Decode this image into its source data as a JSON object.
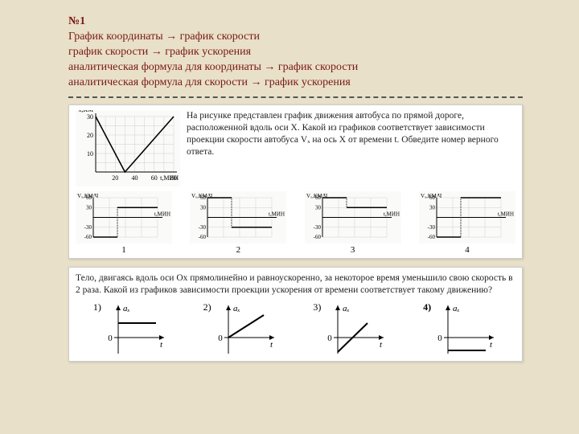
{
  "header": {
    "num": "№1",
    "line1": "График координаты → график скорости",
    "line2": "график скорости → график ускорения",
    "line3": "аналитическая формула для координаты → график скорости",
    "line4": "аналитическая формула для скорости → график ускорения"
  },
  "problem1": {
    "text": "На рисунке представлен график движения автобуса по прямой дороге, расположенной вдоль оси X. Какой из графиков соответствует зависимости проекции скорости автобуса Vₓ на ось X от времени t. Обведите номер верного ответа.",
    "main_chart": {
      "ylabel": "x,КМ",
      "xlabel": "t,МИН",
      "xticks": [
        20,
        40,
        60,
        80
      ],
      "yticks": [
        10,
        20,
        30
      ],
      "pts": [
        [
          0,
          30
        ],
        [
          30,
          0
        ],
        [
          80,
          30
        ]
      ],
      "bg": "#fafaf8",
      "grid": "#cfcfcf",
      "axis": "#000",
      "line": "#000",
      "axis_fontsize": 8
    },
    "options": [
      {
        "n": "1",
        "ylab": "Vₓ,КМ/Ч",
        "xlab": "t,МИН",
        "yticks": [
          -60,
          -30,
          30,
          60
        ],
        "seg": [
          [
            0,
            -60,
            30,
            -60
          ],
          [
            30,
            30,
            80,
            30
          ]
        ]
      },
      {
        "n": "2",
        "ylab": "Vₓ,КМ/Ч",
        "xlab": "t,МИН",
        "yticks": [
          -60,
          -30,
          30,
          60
        ],
        "seg": [
          [
            0,
            60,
            30,
            60
          ],
          [
            30,
            -30,
            80,
            -30
          ]
        ]
      },
      {
        "n": "3",
        "ylab": "Vₓ,КМ/Ч",
        "xlab": "t,МИН",
        "yticks": [
          -60,
          -30,
          30,
          60
        ],
        "seg": [
          [
            0,
            60,
            30,
            60
          ],
          [
            30,
            30,
            80,
            30
          ]
        ]
      },
      {
        "n": "4",
        "ylab": "Vₓ,КМ/Ч",
        "xlab": "t,МИН",
        "yticks": [
          -60,
          -30,
          30,
          60
        ],
        "seg": [
          [
            0,
            -60,
            30,
            -60
          ],
          [
            30,
            60,
            80,
            60
          ]
        ]
      }
    ],
    "opt_style": {
      "bg": "#fafaf8",
      "grid": "#cfcfcf",
      "axis": "#000",
      "line": "#000",
      "axis_fontsize": 7
    }
  },
  "problem2": {
    "text": "Тело, двигаясь вдоль оси Ох прямолинейно и равноускоренно, за некоторое время уменьшило свою скорость в 2 раза. Какой из графиков зависимости проекции ускорения от времени соответствует такому движению?",
    "options": [
      {
        "n": "1)",
        "ylab": "aₓ",
        "xlab": "t",
        "type": "hpos"
      },
      {
        "n": "2)",
        "ylab": "aₓ",
        "xlab": "t",
        "type": "rise"
      },
      {
        "n": "3)",
        "ylab": "aₓ",
        "xlab": "t",
        "type": "riseneg"
      },
      {
        "n": "4)",
        "ylab": "aₓ",
        "xlab": "t",
        "type": "hneg",
        "bold": true
      }
    ],
    "style": {
      "axis": "#000",
      "line": "#000",
      "fontsize": 11
    }
  }
}
